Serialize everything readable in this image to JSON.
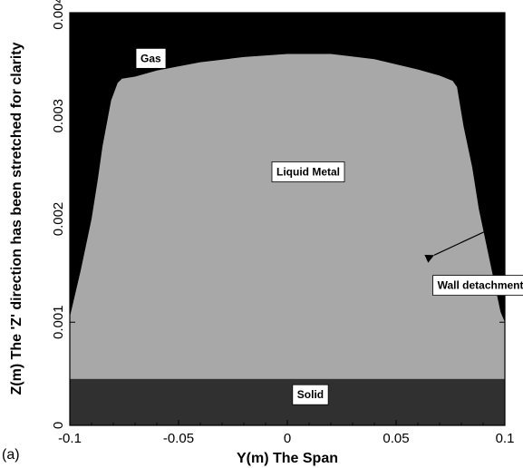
{
  "chart_data": {
    "type": "area",
    "xlabel": "Y(m) The Span",
    "ylabel": "Z(m) The 'Z' direction has been stretched for clarity",
    "xlim": [
      -0.1,
      0.1
    ],
    "ylim": [
      0,
      0.004
    ],
    "x_ticks": [
      -0.1,
      -0.05,
      0,
      0.05,
      0.1
    ],
    "x_tick_labels": [
      "-0.1",
      "-0.05",
      "0",
      "0.05",
      "0.1"
    ],
    "y_ticks": [
      0,
      0.001,
      0.002,
      0.003,
      0.004
    ],
    "y_tick_labels": [
      "0",
      "0.001",
      "0.002",
      "0.003",
      "0.004"
    ],
    "grid": false,
    "panel_label": "(a)",
    "regions": [
      {
        "name": "Gas",
        "color": "#000000",
        "label_at": [
          -0.0675,
          0.00355
        ]
      },
      {
        "name": "Liquid Metal",
        "color": "#a8a8a8",
        "label_at": [
          -0.005,
          0.00245
        ]
      },
      {
        "name": "Solid",
        "color": "#303030",
        "z_range": [
          0,
          0.00045
        ],
        "label_at": [
          0.0045,
          0.00029
        ]
      }
    ],
    "annotations": [
      {
        "text": "Wall detachment",
        "label_at": [
          0.069,
          0.00135
        ],
        "arrow_from": [
          0.0675,
          0.00165
        ],
        "arrow_to": [
          0.093,
          0.0019
        ]
      }
    ],
    "free_surface": {
      "y": [
        -0.1,
        -0.095,
        -0.09,
        -0.087,
        -0.085,
        -0.081,
        -0.078,
        -0.076,
        -0.07,
        -0.06,
        -0.04,
        -0.02,
        0,
        0.01,
        0.02,
        0.04,
        0.06,
        0.07,
        0.076,
        0.078,
        0.081,
        0.085,
        0.088,
        0.092,
        0.095,
        0.098,
        0.1
      ],
      "z": [
        0.00105,
        0.0015,
        0.002,
        0.0024,
        0.0027,
        0.00315,
        0.00332,
        0.00336,
        0.00338,
        0.00344,
        0.00352,
        0.00357,
        0.0036,
        0.0036,
        0.0036,
        0.00355,
        0.00345,
        0.00339,
        0.00334,
        0.00328,
        0.0029,
        0.0025,
        0.0021,
        0.0017,
        0.0014,
        0.0011,
        0.001
      ]
    }
  }
}
